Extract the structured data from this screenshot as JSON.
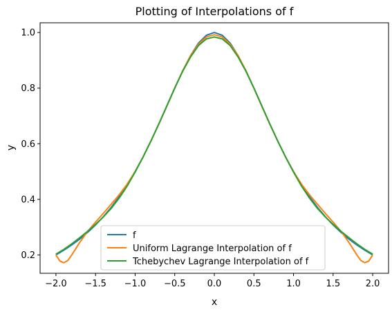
{
  "chart_data": {
    "type": "line",
    "title": "Plotting of Interpolations of f",
    "xlabel": "x",
    "ylabel": "y",
    "xlim": [
      -2.2,
      2.2
    ],
    "ylim": [
      0.134,
      1.035
    ],
    "xticks": [
      -2.0,
      -1.5,
      -1.0,
      -0.5,
      0.0,
      0.5,
      1.0,
      1.5,
      2.0
    ],
    "xtick_labels": [
      "−2.0",
      "−1.5",
      "−1.0",
      "−0.5",
      "0.0",
      "0.5",
      "1.0",
      "1.5",
      "2.0"
    ],
    "yticks": [
      0.2,
      0.4,
      0.6,
      0.8,
      1.0
    ],
    "ytick_labels": [
      "0.2",
      "0.4",
      "0.6",
      "0.8",
      "1.0"
    ],
    "grid": false,
    "legend_position": "lower center",
    "series": [
      {
        "name": "f",
        "color": "#1f77b4",
        "x": [
          -2.0,
          -1.9,
          -1.8,
          -1.7,
          -1.6,
          -1.5,
          -1.4,
          -1.3,
          -1.2,
          -1.1,
          -1.0,
          -0.9,
          -0.8,
          -0.7,
          -0.6,
          -0.5,
          -0.4,
          -0.3,
          -0.2,
          -0.1,
          0.0,
          0.1,
          0.2,
          0.3,
          0.4,
          0.5,
          0.6,
          0.7,
          0.8,
          0.9,
          1.0,
          1.1,
          1.2,
          1.3,
          1.4,
          1.5,
          1.6,
          1.7,
          1.8,
          1.9,
          2.0
        ],
        "y": [
          0.2,
          0.217,
          0.236,
          0.257,
          0.281,
          0.308,
          0.338,
          0.372,
          0.41,
          0.452,
          0.5,
          0.552,
          0.61,
          0.671,
          0.735,
          0.8,
          0.862,
          0.917,
          0.962,
          0.99,
          1.0,
          0.99,
          0.962,
          0.917,
          0.862,
          0.8,
          0.735,
          0.671,
          0.61,
          0.552,
          0.5,
          0.452,
          0.41,
          0.372,
          0.338,
          0.308,
          0.281,
          0.257,
          0.236,
          0.217,
          0.2
        ]
      },
      {
        "name": "Uniform Lagrange Interpolation of f",
        "color": "#ff7f0e",
        "x": [
          -2.0,
          -1.95,
          -1.9,
          -1.85,
          -1.8,
          -1.7,
          -1.6,
          -1.5,
          -1.4,
          -1.3,
          -1.2,
          -1.1,
          -1.0,
          -0.9,
          -0.8,
          -0.7,
          -0.6,
          -0.5,
          -0.4,
          -0.3,
          -0.2,
          -0.1,
          0.0,
          0.1,
          0.2,
          0.3,
          0.4,
          0.5,
          0.6,
          0.7,
          0.8,
          0.9,
          1.0,
          1.1,
          1.2,
          1.3,
          1.4,
          1.5,
          1.6,
          1.7,
          1.8,
          1.85,
          1.9,
          1.95,
          2.0
        ],
        "y": [
          0.2,
          0.178,
          0.172,
          0.18,
          0.2,
          0.245,
          0.285,
          0.318,
          0.35,
          0.383,
          0.417,
          0.455,
          0.5,
          0.552,
          0.61,
          0.671,
          0.735,
          0.8,
          0.862,
          0.917,
          0.958,
          0.984,
          0.992,
          0.984,
          0.958,
          0.917,
          0.862,
          0.8,
          0.735,
          0.671,
          0.61,
          0.552,
          0.5,
          0.455,
          0.417,
          0.383,
          0.35,
          0.318,
          0.285,
          0.245,
          0.2,
          0.18,
          0.172,
          0.178,
          0.2
        ]
      },
      {
        "name": "Tchebychev Lagrange Interpolation of f",
        "color": "#2ca02c",
        "x": [
          -2.0,
          -1.9,
          -1.8,
          -1.7,
          -1.6,
          -1.5,
          -1.4,
          -1.3,
          -1.2,
          -1.1,
          -1.0,
          -0.9,
          -0.8,
          -0.7,
          -0.6,
          -0.5,
          -0.4,
          -0.3,
          -0.2,
          -0.1,
          0.0,
          0.1,
          0.2,
          0.3,
          0.4,
          0.5,
          0.6,
          0.7,
          0.8,
          0.9,
          1.0,
          1.1,
          1.2,
          1.3,
          1.4,
          1.5,
          1.6,
          1.7,
          1.8,
          1.9,
          2.0
        ],
        "y": [
          0.203,
          0.22,
          0.24,
          0.262,
          0.285,
          0.31,
          0.337,
          0.368,
          0.405,
          0.448,
          0.498,
          0.552,
          0.61,
          0.672,
          0.736,
          0.8,
          0.86,
          0.912,
          0.953,
          0.977,
          0.984,
          0.977,
          0.953,
          0.912,
          0.86,
          0.8,
          0.736,
          0.672,
          0.61,
          0.552,
          0.498,
          0.448,
          0.405,
          0.368,
          0.337,
          0.31,
          0.285,
          0.262,
          0.24,
          0.22,
          0.203
        ]
      }
    ]
  }
}
